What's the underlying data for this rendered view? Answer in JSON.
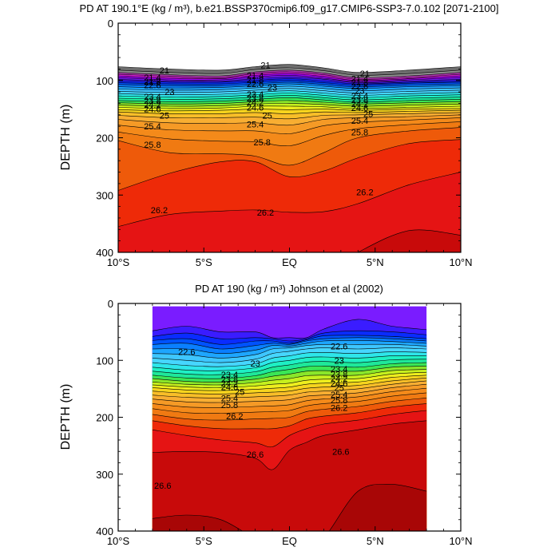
{
  "chart_data": [
    {
      "type": "contour",
      "title": "PD AT 190.1°E (kg / m³), b.e21.BSSP370cmip6.f09_g17.CMIP6-SSP3-7.0.102 [2071-2100]",
      "ylabel": "DEPTH (m)",
      "xlabel": "",
      "xlim": [
        -10,
        10
      ],
      "ylim": [
        400,
        0
      ],
      "yreversed": true,
      "xticks": [
        -10,
        -5,
        0,
        5,
        10
      ],
      "xtick_labels": [
        "10°S",
        "5°S",
        "EQ",
        "5°N",
        "10°N"
      ],
      "yticks": [
        0,
        100,
        200,
        300,
        400
      ],
      "ytick_labels": [
        "0",
        "100",
        "200",
        "300",
        "400"
      ],
      "data_xlim": [
        -10,
        10
      ],
      "data_ylim": [
        0,
        400
      ],
      "contour_interval": 0.2,
      "contour_labels": [
        {
          "text": "21",
          "x": -7.3,
          "y": 82
        },
        {
          "text": "21",
          "x": -1.4,
          "y": 73
        },
        {
          "text": "21",
          "x": 4.4,
          "y": 88
        },
        {
          "text": "21.4",
          "x": -8.0,
          "y": 95
        },
        {
          "text": "21.4",
          "x": -2.0,
          "y": 91
        },
        {
          "text": "21.4",
          "x": 4.1,
          "y": 97
        },
        {
          "text": "21.8",
          "x": -8.0,
          "y": 102
        },
        {
          "text": "21.8",
          "x": -2.0,
          "y": 99
        },
        {
          "text": "21.8",
          "x": 4.1,
          "y": 103
        },
        {
          "text": "22.6",
          "x": -8.0,
          "y": 108
        },
        {
          "text": "22.6",
          "x": -2.0,
          "y": 106
        },
        {
          "text": "22.6",
          "x": 4.1,
          "y": 110
        },
        {
          "text": "23",
          "x": -7.0,
          "y": 120
        },
        {
          "text": "23",
          "x": -1.0,
          "y": 112
        },
        {
          "text": "23",
          "x": 4.1,
          "y": 118
        },
        {
          "text": "23.4",
          "x": -8.0,
          "y": 128
        },
        {
          "text": "23.4",
          "x": -2.0,
          "y": 124
        },
        {
          "text": "23.4",
          "x": 4.1,
          "y": 127
        },
        {
          "text": "23.8",
          "x": -8.0,
          "y": 135
        },
        {
          "text": "23.8",
          "x": -2.0,
          "y": 131
        },
        {
          "text": "23.8",
          "x": 4.1,
          "y": 134
        },
        {
          "text": "24.2",
          "x": -8.0,
          "y": 142
        },
        {
          "text": "24.2",
          "x": -2.0,
          "y": 138
        },
        {
          "text": "24.2",
          "x": 4.1,
          "y": 141
        },
        {
          "text": "24.6",
          "x": -8.0,
          "y": 150
        },
        {
          "text": "24.6",
          "x": -2.0,
          "y": 147
        },
        {
          "text": "24.6",
          "x": 4.1,
          "y": 148
        },
        {
          "text": "25",
          "x": -7.3,
          "y": 161
        },
        {
          "text": "25",
          "x": -1.3,
          "y": 161
        },
        {
          "text": "25",
          "x": 4.6,
          "y": 158
        },
        {
          "text": "25.4",
          "x": -8.0,
          "y": 180
        },
        {
          "text": "25.4",
          "x": -2.0,
          "y": 176
        },
        {
          "text": "25.4",
          "x": 4.1,
          "y": 170
        },
        {
          "text": "25.8",
          "x": -8.0,
          "y": 212
        },
        {
          "text": "25.8",
          "x": -1.6,
          "y": 208
        },
        {
          "text": "25.8",
          "x": 4.1,
          "y": 190
        },
        {
          "text": "26.2",
          "x": -7.6,
          "y": 326
        },
        {
          "text": "26.2",
          "x": -1.4,
          "y": 330
        },
        {
          "text": "26.2",
          "x": 4.4,
          "y": 295
        }
      ]
    },
    {
      "type": "contour",
      "title": "PD AT 190 (kg / m³) Johnson et al (2002)",
      "ylabel": "DEPTH (m)",
      "xlabel": "",
      "xlim": [
        -10,
        10
      ],
      "ylim": [
        400,
        0
      ],
      "yreversed": true,
      "xticks": [
        -10,
        -5,
        0,
        5,
        10
      ],
      "xtick_labels": [
        "10°S",
        "5°S",
        "EQ",
        "5°N",
        "10°N"
      ],
      "yticks": [
        0,
        100,
        200,
        300,
        400
      ],
      "ytick_labels": [
        "0",
        "100",
        "200",
        "300",
        "400"
      ],
      "data_xlim": [
        -8,
        8
      ],
      "data_ylim": [
        5,
        400
      ],
      "contour_interval": 0.2,
      "contour_labels": [
        {
          "text": "22.6",
          "x": -6.0,
          "y": 85
        },
        {
          "text": "22.6",
          "x": 2.9,
          "y": 75
        },
        {
          "text": "23",
          "x": -2.0,
          "y": 105
        },
        {
          "text": "23",
          "x": 2.9,
          "y": 100
        },
        {
          "text": "23.4",
          "x": -3.5,
          "y": 125
        },
        {
          "text": "23.4",
          "x": 2.9,
          "y": 115
        },
        {
          "text": "23.8",
          "x": -3.5,
          "y": 133
        },
        {
          "text": "23.8",
          "x": 2.9,
          "y": 124
        },
        {
          "text": "24.2",
          "x": -3.5,
          "y": 140
        },
        {
          "text": "24.2",
          "x": 2.9,
          "y": 132
        },
        {
          "text": "24.6",
          "x": -3.5,
          "y": 147
        },
        {
          "text": "24.6",
          "x": 2.9,
          "y": 140
        },
        {
          "text": "25",
          "x": -2.9,
          "y": 155
        },
        {
          "text": "25",
          "x": 2.9,
          "y": 148
        },
        {
          "text": "25.4",
          "x": -3.5,
          "y": 166
        },
        {
          "text": "25.4",
          "x": 2.9,
          "y": 160
        },
        {
          "text": "25.8",
          "x": -3.5,
          "y": 178
        },
        {
          "text": "25.8",
          "x": 2.9,
          "y": 170
        },
        {
          "text": "26.2",
          "x": -3.2,
          "y": 198
        },
        {
          "text": "26.2",
          "x": 2.9,
          "y": 183
        },
        {
          "text": "26.6",
          "x": -2.0,
          "y": 265
        },
        {
          "text": "26.6",
          "x": 3.0,
          "y": 260
        },
        {
          "text": "26.6",
          "x": -7.4,
          "y": 320
        }
      ]
    }
  ]
}
